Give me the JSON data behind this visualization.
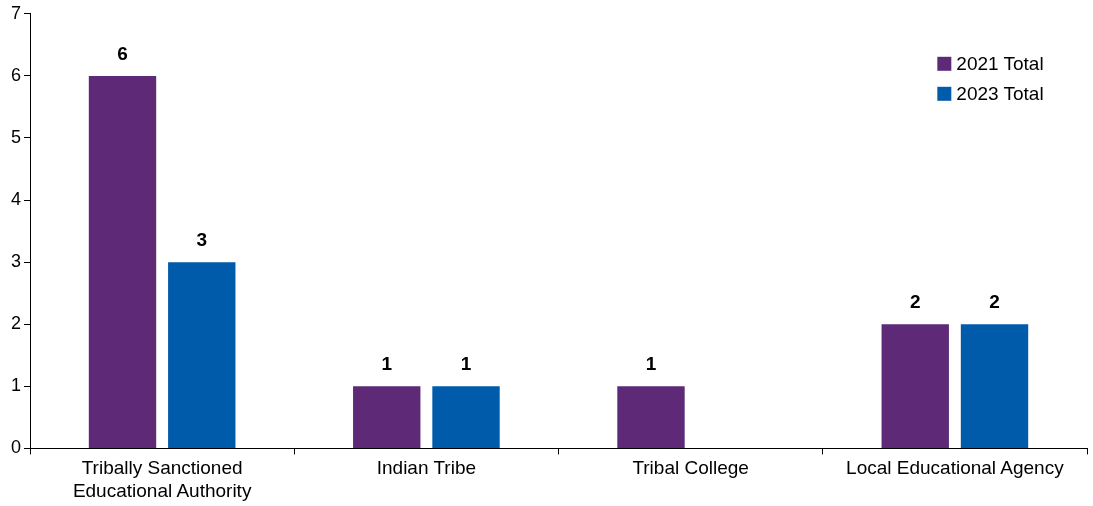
{
  "chart_data": {
    "type": "bar",
    "categories": [
      "Tribally Sanctioned Educational Authority",
      "Indian Tribe",
      "Tribal College",
      "Local Educational Agency"
    ],
    "series": [
      {
        "name": "2021 Total",
        "color": "#5e2a78",
        "values": [
          6,
          1,
          1,
          2
        ]
      },
      {
        "name": "2023 Total",
        "color": "#005baa",
        "values": [
          3,
          1,
          null,
          2
        ]
      }
    ],
    "ylim": [
      0,
      7
    ],
    "yticks": [
      0,
      1,
      2,
      3,
      4,
      5,
      6,
      7
    ],
    "grid": false,
    "legend": "top right",
    "data_labels": true
  }
}
